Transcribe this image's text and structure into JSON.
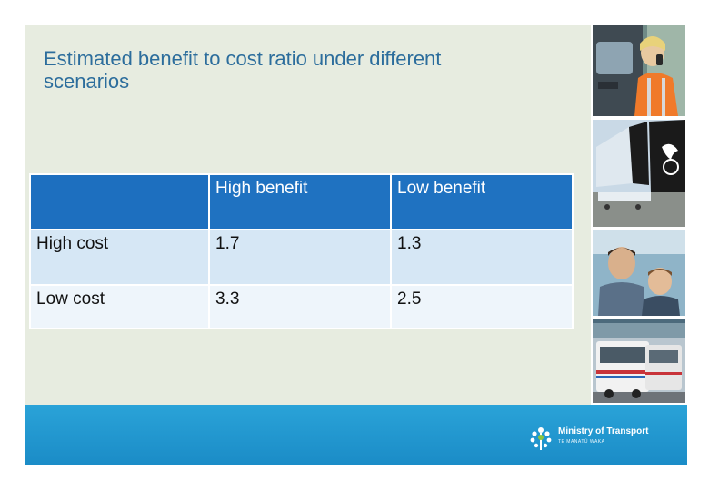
{
  "slide": {
    "title": "Estimated benefit to cost ratio under different\nscenarios"
  },
  "table": {
    "columns": [
      "",
      "High benefit",
      "Low benefit"
    ],
    "rows": [
      {
        "label": "High cost",
        "high_benefit": "1.7",
        "low_benefit": "1.3"
      },
      {
        "label": "Low cost",
        "high_benefit": "3.3",
        "low_benefit": "2.5"
      }
    ]
  },
  "footer": {
    "brand_name": "Ministry of Transport",
    "brand_subtitle": "TE MANATŪ WAKA"
  },
  "icons": [
    "fern-logo-icon"
  ],
  "colors": {
    "title": "#2c6d9c",
    "header": "#1f72c1",
    "footer": "#1b8cc7",
    "slide_background": "#e7ece0"
  }
}
